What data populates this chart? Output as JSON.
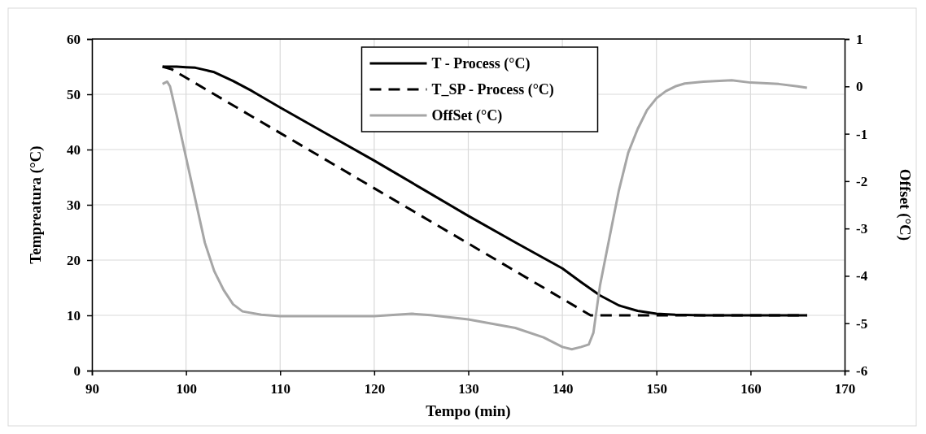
{
  "chart_data": {
    "type": "line",
    "xlabel": "Tempo (min)",
    "ylabel": "Tempreatura (°C)",
    "y2label": "Offset (°C)",
    "xlim": [
      90,
      170
    ],
    "xticks": [
      90,
      100,
      110,
      120,
      130,
      140,
      150,
      160,
      170
    ],
    "ylim": [
      0,
      60
    ],
    "yticks": [
      0,
      10,
      20,
      30,
      40,
      50,
      60
    ],
    "y2lim": [
      -6,
      1
    ],
    "y2ticks": [
      -6,
      -5,
      -4,
      -3,
      -2,
      -1,
      0,
      1
    ],
    "grid": true,
    "legend": "top",
    "series": [
      {
        "name": "T - Process (°C)",
        "color": "#000000",
        "line_style": "solid",
        "x": [
          97.5,
          99,
          100,
          101,
          103,
          105,
          107,
          110,
          115,
          120,
          125,
          130,
          135,
          140,
          142,
          144,
          146,
          148,
          150,
          152,
          155,
          160,
          166
        ],
        "values": [
          55,
          55,
          54.9,
          54.8,
          54,
          52.4,
          50.6,
          47.6,
          42.8,
          38,
          33,
          28,
          23.2,
          18.5,
          16,
          13.6,
          11.8,
          10.8,
          10.3,
          10.1,
          10,
          10,
          10
        ]
      },
      {
        "name": "T_SP - Process (°C)",
        "color": "#000000",
        "line_style": "dashed",
        "x": [
          97.5,
          98.5,
          110,
          120,
          130,
          143,
          150,
          160,
          166
        ],
        "values": [
          55,
          54.5,
          43,
          33,
          23,
          10,
          10,
          10,
          10
        ]
      },
      {
        "name": "OffSet (°C)",
        "color": "#a6a6a6",
        "line_style": "solid",
        "axis": "y2",
        "x": [
          97.5,
          98,
          98.3,
          99,
          100,
          101,
          102,
          103,
          104,
          105,
          106,
          108,
          110,
          115,
          120,
          124,
          126,
          130,
          135,
          138,
          140,
          141,
          142,
          142.8,
          143.3,
          144,
          145,
          146,
          147,
          148,
          149,
          150,
          151,
          152,
          153,
          155,
          158,
          160,
          163,
          165,
          166
        ],
        "values": [
          0.05,
          0.1,
          0,
          -0.6,
          -1.5,
          -2.4,
          -3.3,
          -3.9,
          -4.3,
          -4.6,
          -4.75,
          -4.82,
          -4.85,
          -4.85,
          -4.85,
          -4.8,
          -4.83,
          -4.92,
          -5.1,
          -5.3,
          -5.5,
          -5.55,
          -5.5,
          -5.45,
          -5.2,
          -4.2,
          -3.2,
          -2.2,
          -1.4,
          -0.9,
          -0.5,
          -0.25,
          -0.1,
          0,
          0.06,
          0.1,
          0.13,
          0.08,
          0.05,
          0,
          -0.03
        ]
      }
    ]
  }
}
